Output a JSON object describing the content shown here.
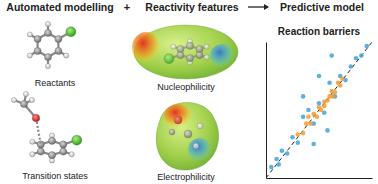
{
  "header": {
    "left": "Automated modelling",
    "plus": "+",
    "middle": "Reactivity features",
    "right": "Predictive model"
  },
  "molecules": [
    {
      "label": "Reactants"
    },
    {
      "label": "Transition states"
    }
  ],
  "surfaces": [
    {
      "label": "Nucleophilicity"
    },
    {
      "label": "Electrophilicity"
    }
  ],
  "chart_data": {
    "type": "scatter",
    "title": "Reaction barriers",
    "tick_labels": false,
    "xlim": [
      0,
      1
    ],
    "ylim": [
      0,
      1
    ],
    "series": [
      {
        "color": "#3fa3dc",
        "marker": "circle",
        "x": [
          0.05,
          0.1,
          0.12,
          0.15,
          0.2,
          0.25,
          0.3,
          0.35,
          0.4,
          0.45,
          0.5,
          0.55,
          0.6,
          0.65,
          0.7,
          0.75,
          0.8,
          0.85,
          0.9,
          0.95,
          0.5,
          0.62,
          0.58,
          0.35,
          0.45
        ],
        "values": [
          0.08,
          0.14,
          0.1,
          0.2,
          0.18,
          0.3,
          0.26,
          0.45,
          0.5,
          0.4,
          0.55,
          0.48,
          0.7,
          0.6,
          0.75,
          0.72,
          0.82,
          0.88,
          0.9,
          0.97,
          0.75,
          0.9,
          0.35,
          0.6,
          0.25
        ]
      },
      {
        "color": "#f39a2b",
        "marker": "circle",
        "x": [
          0.3,
          0.35,
          0.38,
          0.42,
          0.45,
          0.48,
          0.5,
          0.52,
          0.55,
          0.58,
          0.6,
          0.62,
          0.65,
          0.68,
          0.7,
          0.72,
          0.4,
          0.55,
          0.63
        ],
        "values": [
          0.32,
          0.33,
          0.4,
          0.4,
          0.47,
          0.45,
          0.52,
          0.5,
          0.56,
          0.57,
          0.6,
          0.64,
          0.63,
          0.7,
          0.68,
          0.73,
          0.45,
          0.53,
          0.6
        ]
      }
    ]
  }
}
